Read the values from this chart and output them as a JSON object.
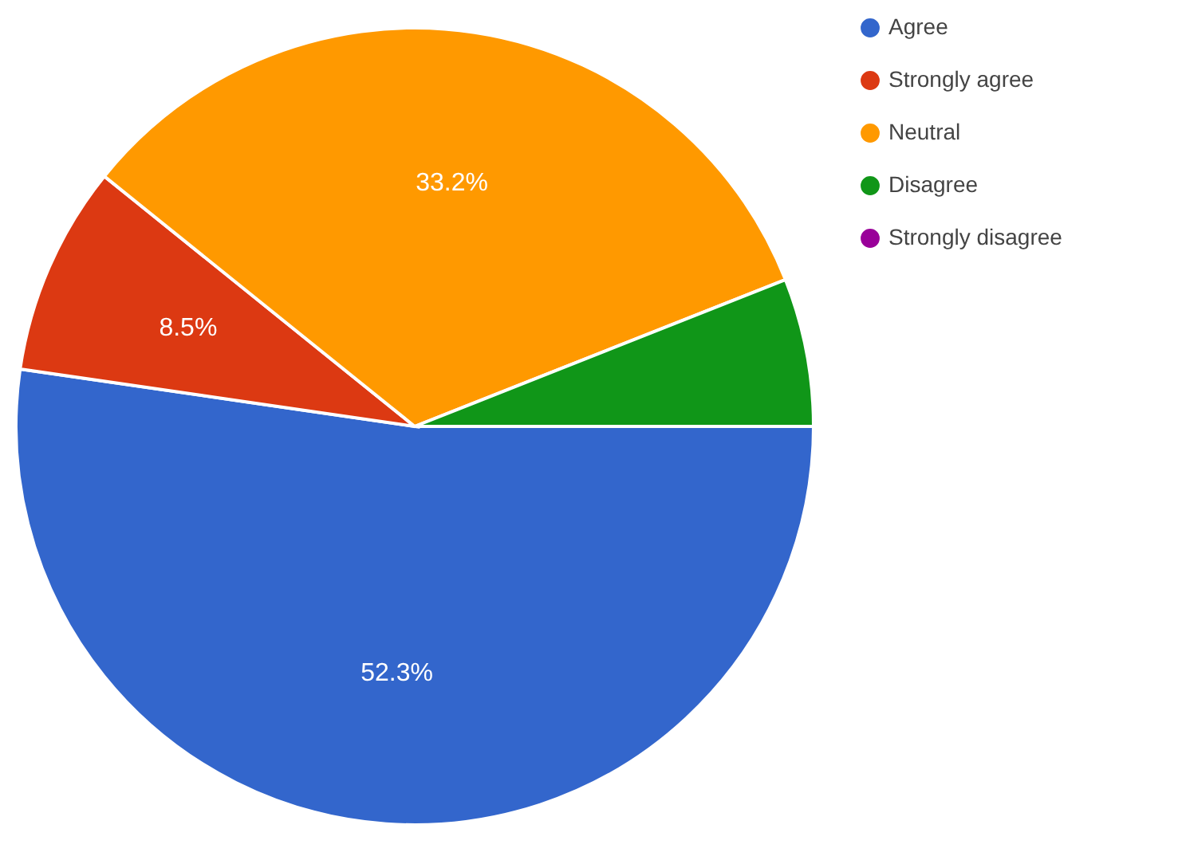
{
  "chart_data": {
    "type": "pie",
    "categories": [
      "Agree",
      "Strongly agree",
      "Neutral",
      "Disagree",
      "Strongly disagree"
    ],
    "values": [
      52.3,
      8.5,
      33.2,
      6.0,
      0
    ],
    "value_labels": [
      "52.3%",
      "8.5%",
      "33.2%",
      null,
      null
    ],
    "colors": [
      "#3366cc",
      "#dc3912",
      "#ff9900",
      "#109618",
      "#990099"
    ],
    "legend": "right"
  }
}
